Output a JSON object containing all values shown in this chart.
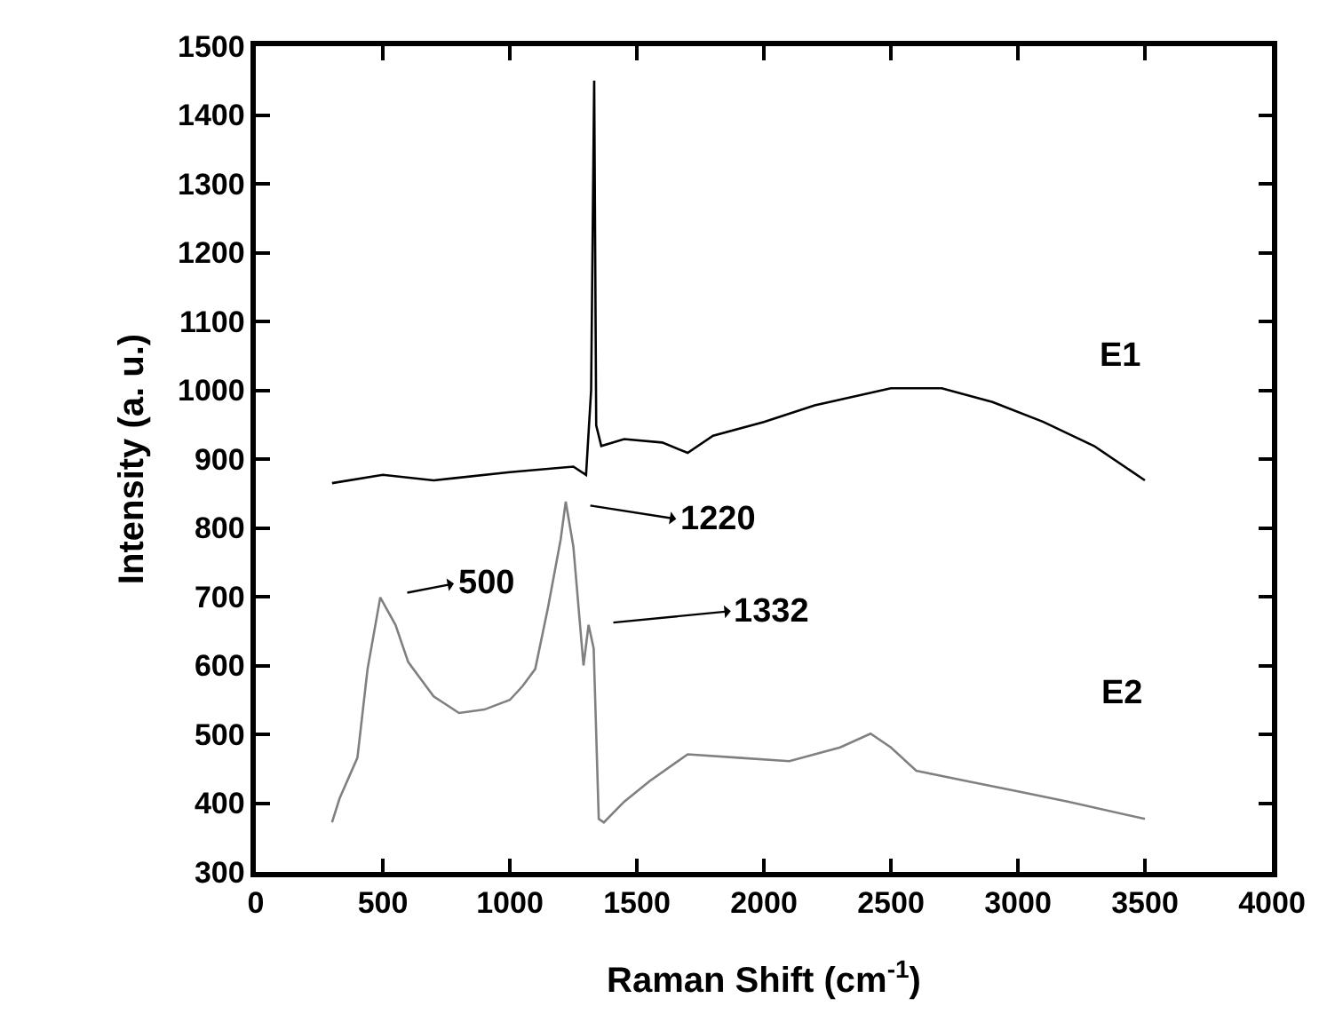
{
  "chart_data": {
    "type": "line",
    "xlabel": "Raman Shift (cm$^{-1}$)",
    "ylabel": "Intensity (a. u.)",
    "xlim": [
      0,
      4000
    ],
    "xticks": [
      0,
      500,
      1000,
      1500,
      2000,
      2500,
      3000,
      3500,
      4000
    ],
    "ylim": [
      300,
      1500
    ],
    "yticks": [
      300,
      400,
      500,
      600,
      700,
      800,
      900,
      1000,
      1100,
      1200,
      1300,
      1400,
      1500
    ],
    "grid": false,
    "legend": false,
    "marker": "none",
    "line_style": "solid",
    "series": [
      {
        "name": "E1",
        "color": "#000000",
        "x": [
          300,
          500,
          700,
          1000,
          1250,
          1300,
          1320,
          1332,
          1340,
          1360,
          1450,
          1600,
          1700,
          1800,
          2000,
          2200,
          2500,
          2700,
          2900,
          3100,
          3300,
          3500
        ],
        "values": [
          865,
          877,
          869,
          881,
          889,
          877,
          1000,
          1450,
          949,
          919,
          929,
          924,
          909,
          934,
          954,
          978,
          1003,
          1003,
          983,
          954,
          919,
          869
        ]
      },
      {
        "name": "E2",
        "color": "#808080",
        "x": [
          300,
          330,
          400,
          440,
          490,
          550,
          600,
          700,
          800,
          900,
          1000,
          1050,
          1100,
          1150,
          1200,
          1220,
          1250,
          1290,
          1310,
          1330,
          1350,
          1370,
          1450,
          1550,
          1700,
          1900,
          2100,
          2300,
          2420,
          2500,
          2600,
          2800,
          3000,
          3200,
          3500
        ],
        "values": [
          372,
          407,
          466,
          595,
          699,
          659,
          605,
          555,
          531,
          536,
          550,
          570,
          595,
          684,
          783,
          838,
          773,
          600,
          659,
          625,
          377,
          372,
          402,
          432,
          471,
          466,
          461,
          481,
          501,
          481,
          447,
          432,
          417,
          402,
          377
        ]
      }
    ],
    "annotations": [
      {
        "text": "500",
        "x": 500,
        "y": 699
      },
      {
        "text": "1220",
        "x": 1220,
        "y": 838
      },
      {
        "text": "1332",
        "x": 1310,
        "y": 659
      }
    ]
  }
}
